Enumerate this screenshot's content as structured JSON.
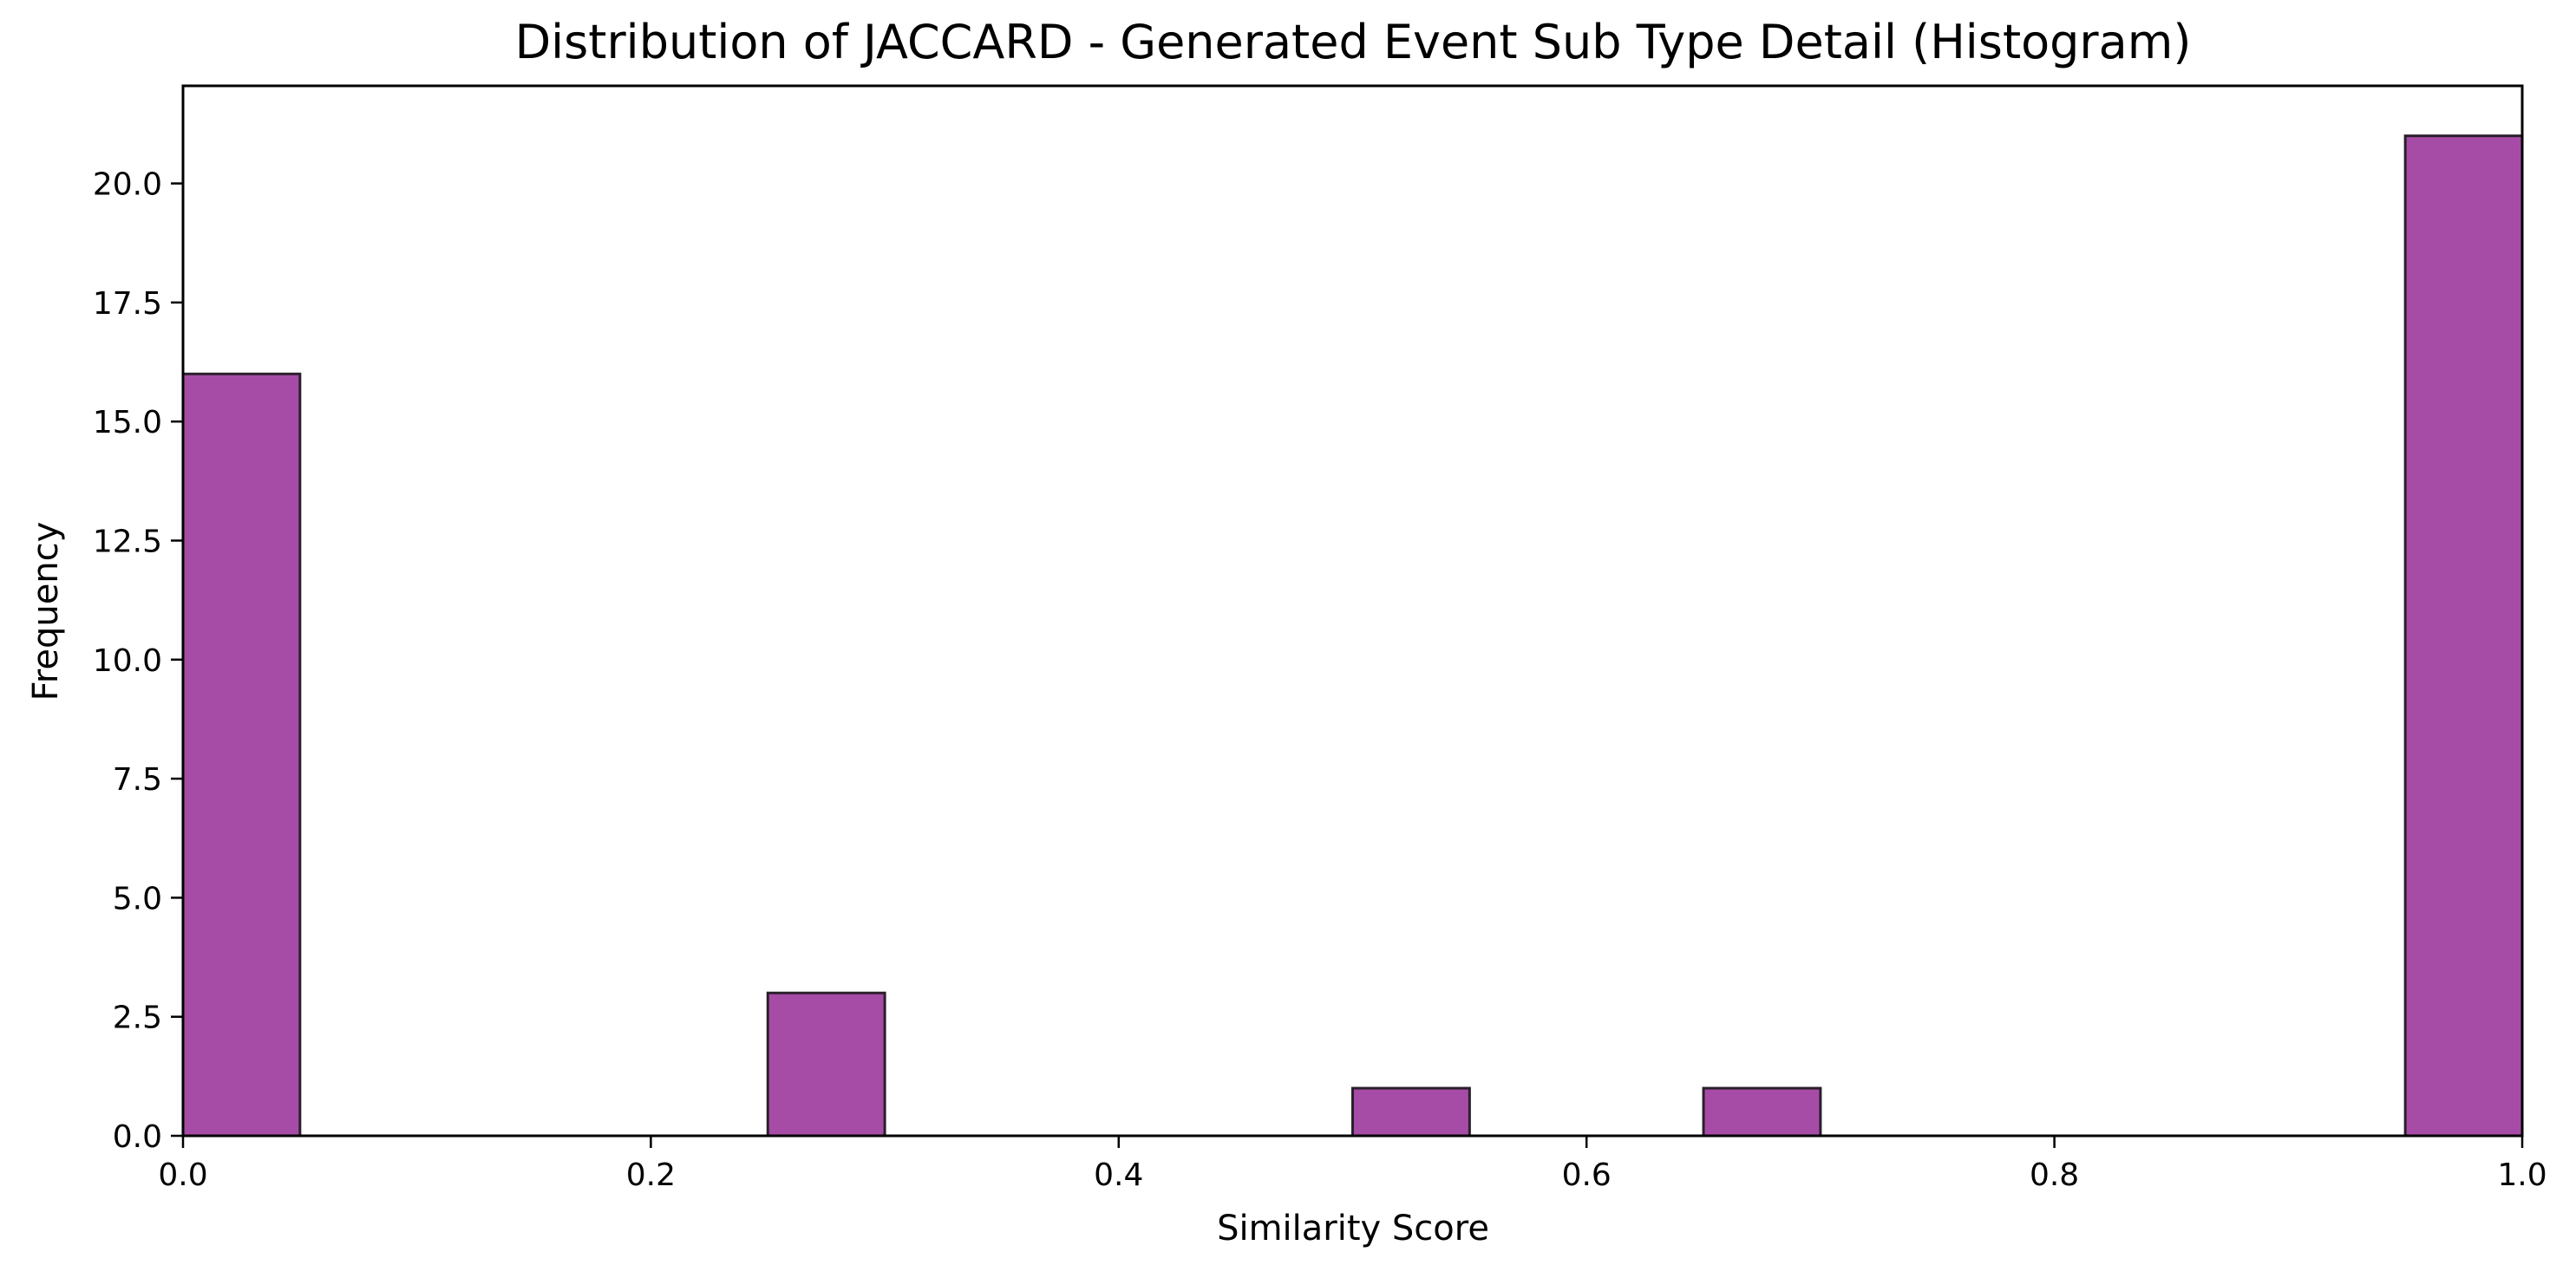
{
  "chart_data": {
    "type": "bar",
    "title": "Distribution of JACCARD - Generated Event Sub Type Detail (Histogram)",
    "xlabel": "Similarity Score",
    "ylabel": "Frequency",
    "xlim": [
      0.0,
      1.0
    ],
    "ylim": [
      0.0,
      22.05
    ],
    "xticks": [
      "0.0",
      "0.2",
      "0.4",
      "0.6",
      "0.8",
      "1.0"
    ],
    "yticks": [
      "0.0",
      "2.5",
      "5.0",
      "7.5",
      "10.0",
      "12.5",
      "15.0",
      "17.5",
      "20.0"
    ],
    "bins": [
      {
        "x0": 0.0,
        "x1": 0.05,
        "count": 16
      },
      {
        "x0": 0.25,
        "x1": 0.3,
        "count": 3
      },
      {
        "x0": 0.5,
        "x1": 0.55,
        "count": 1
      },
      {
        "x0": 0.65,
        "x1": 0.7,
        "count": 1
      },
      {
        "x0": 0.95,
        "x1": 1.0,
        "count": 21
      }
    ],
    "grid": false,
    "legend": "none",
    "colors": {
      "bar_fill": "#a64ca6",
      "bar_edge": "#2b1f2b"
    }
  }
}
